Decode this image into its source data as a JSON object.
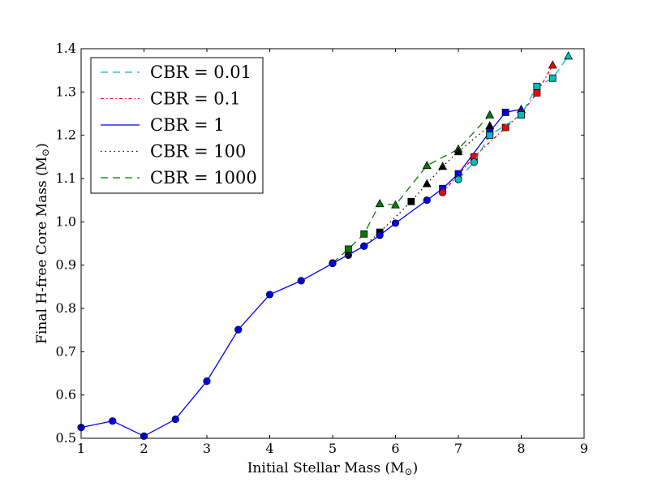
{
  "chart_data": {
    "type": "line",
    "title": "",
    "xlabel": "Initial Stellar Mass (M",
    "ylabel": "Final H-free Core Mass (M",
    "unit_symbol": "⊙",
    "xlim": [
      1,
      9
    ],
    "ylim": [
      0.5,
      1.4
    ],
    "xticks": [
      1,
      2,
      3,
      4,
      5,
      6,
      7,
      8,
      9
    ],
    "yticks": [
      0.5,
      0.6,
      0.7,
      0.8,
      0.9,
      1.0,
      1.1,
      1.2,
      1.3,
      1.4
    ],
    "xtick_labels": [
      "1",
      "2",
      "3",
      "4",
      "5",
      "6",
      "7",
      "8",
      "9"
    ],
    "ytick_labels": [
      "0.5",
      "0.6",
      "0.7",
      "0.8",
      "0.9",
      "1.0",
      "1.1",
      "1.2",
      "1.3",
      "1.4"
    ],
    "legend_position": "upper-left",
    "series": [
      {
        "name": "CBR = 1000",
        "color": "#007f00",
        "dash": "9,6",
        "points": [
          {
            "x": 5.0,
            "y": 0.905,
            "m": "circle"
          },
          {
            "x": 5.25,
            "y": 0.937,
            "m": "square"
          },
          {
            "x": 5.5,
            "y": 0.972,
            "m": "square"
          },
          {
            "x": 5.75,
            "y": 1.042,
            "m": "triangle"
          },
          {
            "x": 6.0,
            "y": 1.039,
            "m": "triangle"
          },
          {
            "x": 6.5,
            "y": 1.13,
            "m": "triangle"
          },
          {
            "x": 7.0,
            "y": 1.168,
            "m": "triangle"
          },
          {
            "x": 7.5,
            "y": 1.247,
            "m": "triangle"
          }
        ]
      },
      {
        "name": "CBR = 100",
        "color": "#000000",
        "dash": "1.5,4",
        "points": [
          {
            "x": 5.25,
            "y": 0.923,
            "m": "circle"
          },
          {
            "x": 5.5,
            "y": 0.944,
            "m": "circle"
          },
          {
            "x": 5.75,
            "y": 0.976,
            "m": "square"
          },
          {
            "x": 6.25,
            "y": 1.047,
            "m": "square"
          },
          {
            "x": 6.5,
            "y": 1.088,
            "m": "triangle"
          },
          {
            "x": 6.75,
            "y": 1.128,
            "m": "triangle"
          },
          {
            "x": 7.0,
            "y": 1.162,
            "m": "triangle"
          },
          {
            "x": 7.5,
            "y": 1.222,
            "m": "triangle"
          }
        ]
      },
      {
        "name": "CBR = 1",
        "color": "#0000ff",
        "dash": "",
        "points": [
          {
            "x": 1.0,
            "y": 0.525,
            "m": "circle"
          },
          {
            "x": 1.5,
            "y": 0.54,
            "m": "circle"
          },
          {
            "x": 2.0,
            "y": 0.505,
            "m": "circle"
          },
          {
            "x": 2.5,
            "y": 0.544,
            "m": "circle"
          },
          {
            "x": 3.0,
            "y": 0.632,
            "m": "circle"
          },
          {
            "x": 3.5,
            "y": 0.751,
            "m": "circle"
          },
          {
            "x": 4.0,
            "y": 0.832,
            "m": "circle"
          },
          {
            "x": 4.5,
            "y": 0.864,
            "m": "circle"
          },
          {
            "x": 5.0,
            "y": 0.904,
            "m": "circle"
          },
          {
            "x": 5.5,
            "y": 0.944,
            "m": "circle"
          },
          {
            "x": 5.75,
            "y": 0.969,
            "m": "circle"
          },
          {
            "x": 6.0,
            "y": 0.997,
            "m": "circle"
          },
          {
            "x": 6.5,
            "y": 1.05,
            "m": "circle"
          },
          {
            "x": 6.75,
            "y": 1.077,
            "m": "square"
          },
          {
            "x": 7.0,
            "y": 1.111,
            "m": "square"
          },
          {
            "x": 7.5,
            "y": 1.208,
            "m": "square"
          },
          {
            "x": 7.75,
            "y": 1.253,
            "m": "square"
          },
          {
            "x": 8.0,
            "y": 1.26,
            "m": "triangle"
          }
        ]
      },
      {
        "name": "CBR = 0.1",
        "color": "#ff0000",
        "dash": "4,3,1.5,3",
        "points": [
          {
            "x": 6.75,
            "y": 1.068,
            "m": "circle"
          },
          {
            "x": 7.25,
            "y": 1.15,
            "m": "square"
          },
          {
            "x": 7.75,
            "y": 1.218,
            "m": "square"
          },
          {
            "x": 8.0,
            "y": 1.25,
            "m": "square"
          },
          {
            "x": 8.25,
            "y": 1.298,
            "m": "square"
          },
          {
            "x": 8.5,
            "y": 1.362,
            "m": "triangle"
          }
        ]
      },
      {
        "name": "CBR = 0.01",
        "color": "#00bfbf",
        "dash": "9,6",
        "points": [
          {
            "x": 7.0,
            "y": 1.098,
            "m": "circle"
          },
          {
            "x": 7.25,
            "y": 1.138,
            "m": "circle"
          },
          {
            "x": 7.5,
            "y": 1.2,
            "m": "square"
          },
          {
            "x": 8.0,
            "y": 1.247,
            "m": "square"
          },
          {
            "x": 8.25,
            "y": 1.313,
            "m": "square"
          },
          {
            "x": 8.5,
            "y": 1.332,
            "m": "square"
          },
          {
            "x": 8.75,
            "y": 1.383,
            "m": "triangle"
          }
        ]
      }
    ],
    "legend": [
      {
        "label": "CBR = 0.01",
        "color": "#00bfbf",
        "dash": "9,6"
      },
      {
        "label": "CBR = 0.1",
        "color": "#ff0000",
        "dash": "4,3,1.5,3"
      },
      {
        "label": "CBR = 1",
        "color": "#0000ff",
        "dash": ""
      },
      {
        "label": "CBR = 100",
        "color": "#000000",
        "dash": "1.5,4"
      },
      {
        "label": "CBR = 1000",
        "color": "#007f00",
        "dash": "9,6"
      }
    ]
  }
}
